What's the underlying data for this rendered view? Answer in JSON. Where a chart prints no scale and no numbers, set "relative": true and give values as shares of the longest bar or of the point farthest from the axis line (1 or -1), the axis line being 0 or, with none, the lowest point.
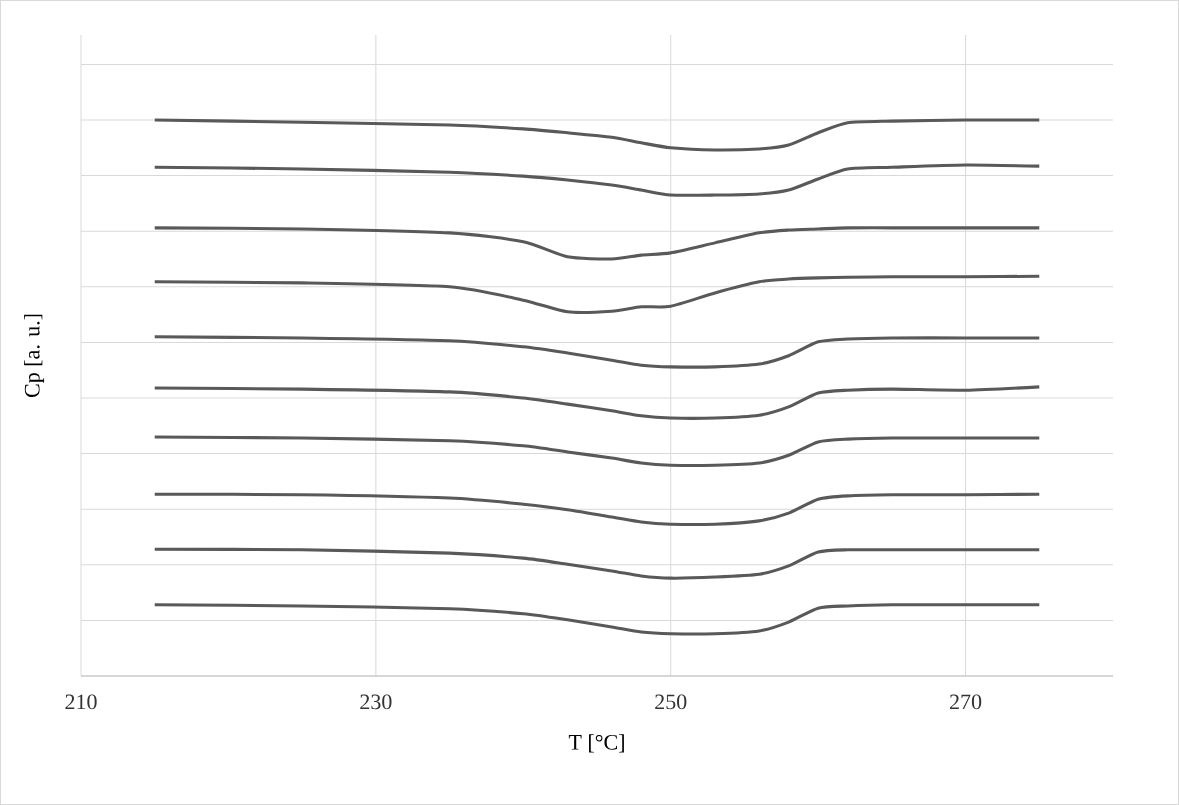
{
  "chart_data": {
    "type": "line",
    "xlabel": "T [°C]",
    "ylabel": "Cp [a. u.]",
    "relative": true,
    "grid": true,
    "xlim": [
      210,
      280
    ],
    "xticks": [
      210,
      230,
      250,
      270
    ],
    "x": [
      215,
      225,
      235,
      240,
      243,
      246,
      248,
      250,
      253,
      256,
      258,
      260,
      262,
      265,
      270,
      275
    ],
    "series": [
      {
        "color": "#595959",
        "values": [
          1.0,
          0.996,
          0.991,
          0.984,
          0.977,
          0.969,
          0.959,
          0.95,
          0.946,
          0.948,
          0.955,
          0.977,
          0.995,
          0.998,
          1.0,
          1.0
        ]
      },
      {
        "color": "#595959",
        "values": [
          0.915,
          0.912,
          0.906,
          0.899,
          0.892,
          0.883,
          0.874,
          0.865,
          0.865,
          0.867,
          0.874,
          0.894,
          0.912,
          0.915,
          0.919,
          0.917
        ]
      },
      {
        "color": "#595959",
        "values": [
          0.806,
          0.804,
          0.797,
          0.781,
          0.754,
          0.75,
          0.757,
          0.761,
          0.779,
          0.797,
          0.802,
          0.804,
          0.806,
          0.806,
          0.806,
          0.806
        ]
      },
      {
        "color": "#595959",
        "values": [
          0.709,
          0.707,
          0.7,
          0.676,
          0.655,
          0.656,
          0.664,
          0.665,
          0.689,
          0.709,
          0.714,
          0.716,
          0.717,
          0.718,
          0.718,
          0.719
        ]
      },
      {
        "color": "#595959",
        "values": [
          0.61,
          0.608,
          0.603,
          0.592,
          0.581,
          0.568,
          0.559,
          0.556,
          0.556,
          0.561,
          0.576,
          0.601,
          0.606,
          0.608,
          0.608,
          0.608
        ]
      },
      {
        "color": "#595959",
        "values": [
          0.518,
          0.516,
          0.511,
          0.5,
          0.489,
          0.477,
          0.468,
          0.464,
          0.464,
          0.469,
          0.484,
          0.509,
          0.514,
          0.516,
          0.514,
          0.52
        ]
      },
      {
        "color": "#595959",
        "values": [
          0.43,
          0.428,
          0.423,
          0.414,
          0.403,
          0.392,
          0.383,
          0.379,
          0.379,
          0.383,
          0.397,
          0.421,
          0.426,
          0.428,
          0.428,
          0.428
        ]
      },
      {
        "color": "#595959",
        "values": [
          0.327,
          0.326,
          0.32,
          0.309,
          0.299,
          0.286,
          0.277,
          0.273,
          0.273,
          0.279,
          0.293,
          0.318,
          0.324,
          0.326,
          0.326,
          0.327
        ]
      },
      {
        "color": "#595959",
        "values": [
          0.228,
          0.227,
          0.221,
          0.212,
          0.201,
          0.189,
          0.18,
          0.176,
          0.178,
          0.183,
          0.198,
          0.223,
          0.227,
          0.227,
          0.227,
          0.227
        ]
      },
      {
        "color": "#595959",
        "values": [
          0.128,
          0.126,
          0.121,
          0.112,
          0.101,
          0.088,
          0.079,
          0.076,
          0.076,
          0.081,
          0.097,
          0.122,
          0.126,
          0.128,
          0.128,
          0.128
        ]
      }
    ]
  }
}
